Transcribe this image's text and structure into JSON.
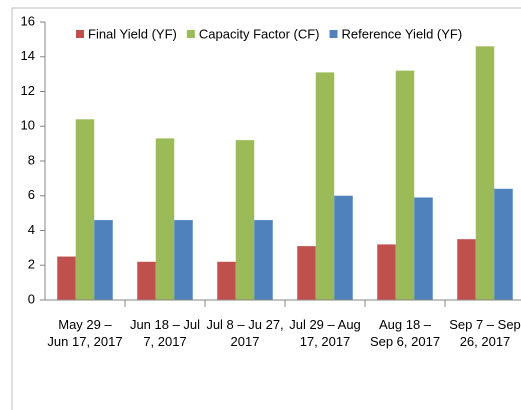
{
  "chart_data": {
    "type": "bar",
    "categories": [
      "May 29 – Jun 17, 2017",
      "Jun 18 – Jul 7, 2017",
      "Jul 8 – Ju 27, 2017",
      "Jul 29 – Aug 17, 2017",
      "Aug 18 – Sep 6, 2017",
      "Sep 7 – Sep 26, 2017"
    ],
    "series": [
      {
        "name": "Final Yield (YF)",
        "color": "#c0504d",
        "values": [
          2.5,
          2.2,
          2.2,
          3.1,
          3.2,
          3.5
        ]
      },
      {
        "name": "Capacity Factor (CF)",
        "color": "#9bbb59",
        "values": [
          10.4,
          9.3,
          9.2,
          13.1,
          13.2,
          14.6
        ]
      },
      {
        "name": "Reference Yield (YF)",
        "color": "#4f81bd",
        "values": [
          4.6,
          4.6,
          4.6,
          6.0,
          5.9,
          6.4
        ]
      }
    ],
    "ylim": [
      0,
      16
    ],
    "yticks": [
      0,
      2,
      4,
      6,
      8,
      10,
      12,
      14,
      16
    ],
    "grid": false,
    "legend": "top"
  }
}
